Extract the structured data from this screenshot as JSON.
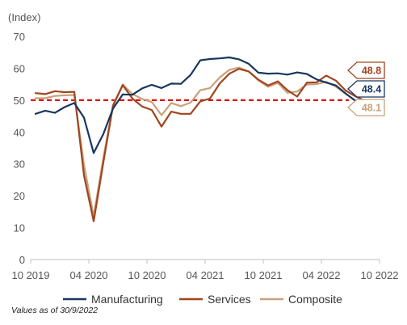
{
  "chart_data": {
    "type": "line",
    "unit_label": "(Index)",
    "x_tick_labels": [
      "10 2019",
      "04 2020",
      "10 2020",
      "04 2021",
      "10 2021",
      "04 2022",
      "10 2022"
    ],
    "y_ticks": [
      0,
      10,
      20,
      30,
      40,
      50,
      60,
      70
    ],
    "ylim": [
      0,
      70
    ],
    "grid": false,
    "legend_position": "bottom",
    "threshold": 50,
    "x_start": "2019-10",
    "series": [
      {
        "name": "Manufacturing",
        "color": "#17375e",
        "values": [
          45.7,
          46.7,
          46.0,
          47.8,
          49.1,
          44.5,
          33.4,
          39.4,
          47.4,
          51.8,
          51.7,
          53.7,
          54.8,
          53.8,
          55.2,
          55.1,
          57.9,
          62.5,
          62.9,
          63.1,
          63.4,
          62.8,
          61.4,
          58.6,
          58.3,
          58.4,
          58.0,
          58.7,
          58.2,
          56.5,
          55.5,
          54.6,
          52.1,
          49.8,
          48.4,
          48.4
        ],
        "end_label": "48.4"
      },
      {
        "name": "Services",
        "color": "#a0451e",
        "values": [
          52.2,
          51.9,
          52.8,
          52.5,
          52.6,
          26.4,
          12.0,
          30.5,
          48.3,
          54.7,
          50.5,
          48.0,
          46.9,
          41.7,
          46.4,
          45.7,
          45.7,
          49.6,
          50.5,
          55.2,
          58.3,
          59.8,
          59.0,
          56.4,
          54.6,
          55.9,
          53.1,
          51.1,
          55.5,
          55.6,
          57.7,
          56.1,
          53.0,
          51.2,
          49.8,
          48.8
        ],
        "end_label": "48.8"
      },
      {
        "name": "Composite",
        "color": "#c9a17a",
        "values": [
          50.6,
          50.6,
          51.3,
          51.5,
          51.6,
          29.7,
          13.6,
          31.9,
          48.5,
          54.9,
          51.9,
          50.4,
          49.4,
          45.3,
          49.1,
          48.1,
          49.2,
          53.1,
          53.8,
          57.1,
          59.5,
          60.2,
          59.0,
          56.2,
          54.2,
          55.4,
          52.3,
          52.7,
          54.9,
          55.0,
          55.8,
          54.2,
          52.0,
          49.9,
          48.9,
          48.1
        ],
        "end_label": "48.1"
      }
    ]
  },
  "footnote": "Values as of 30/9/2022"
}
